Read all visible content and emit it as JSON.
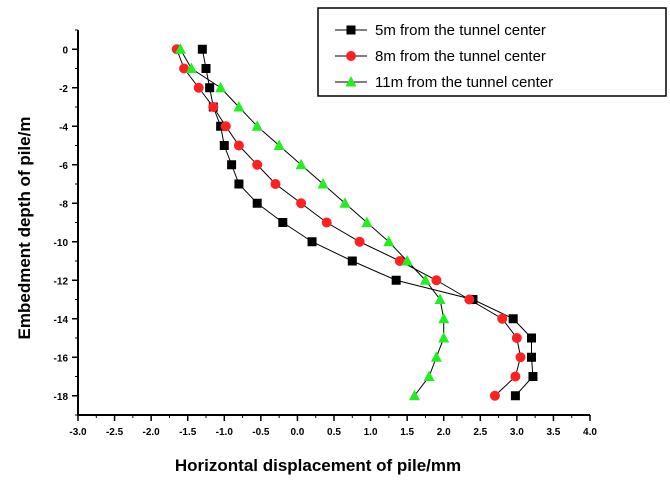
{
  "chart_data": {
    "type": "line",
    "title": "",
    "xlabel": "Horizontal displacement of pile/mm",
    "ylabel": "Embedment depth of pile/m",
    "xlim": [
      -3.0,
      4.0
    ],
    "ylim": [
      -19,
      1
    ],
    "x_ticks": [
      -3.0,
      -2.5,
      -2.0,
      -1.5,
      -1.0,
      -0.5,
      0.0,
      0.5,
      1.0,
      1.5,
      2.0,
      2.5,
      3.0,
      3.5,
      4.0
    ],
    "x_tick_labels": [
      "-3.0",
      "-2.5",
      "-2.0",
      "-1.5",
      "-1.0",
      "-0.5",
      "0.0",
      "0.5",
      "1.0",
      "1.5",
      "2.0",
      "2.5",
      "3.0",
      "3.5",
      "4.0"
    ],
    "y_ticks": [
      0,
      -2,
      -4,
      -6,
      -8,
      -10,
      -12,
      -14,
      -16,
      -18
    ],
    "y_tick_labels": [
      "0",
      "-2",
      "-4",
      "-6",
      "-8",
      "-10",
      "-12",
      "-14",
      "-16",
      "-18"
    ],
    "grid": false,
    "legend_position": "top-right",
    "series": [
      {
        "name": "5m from the tunnel center",
        "marker": "square",
        "color": "#000000",
        "points": [
          [
            -1.3,
            0
          ],
          [
            -1.25,
            -1
          ],
          [
            -1.2,
            -2
          ],
          [
            -1.15,
            -3
          ],
          [
            -1.05,
            -4
          ],
          [
            -1.0,
            -5
          ],
          [
            -0.9,
            -6
          ],
          [
            -0.8,
            -7
          ],
          [
            -0.55,
            -8
          ],
          [
            -0.2,
            -9
          ],
          [
            0.2,
            -10
          ],
          [
            0.75,
            -11
          ],
          [
            1.35,
            -12
          ],
          [
            2.4,
            -13
          ],
          [
            2.95,
            -14
          ],
          [
            3.2,
            -15
          ],
          [
            3.2,
            -16
          ],
          [
            3.22,
            -17
          ],
          [
            2.98,
            -18
          ]
        ]
      },
      {
        "name": "8m from the tunnel center",
        "marker": "circle",
        "color": "#ff2020",
        "points": [
          [
            -1.65,
            0
          ],
          [
            -1.55,
            -1
          ],
          [
            -1.35,
            -2
          ],
          [
            -1.15,
            -3
          ],
          [
            -0.98,
            -4
          ],
          [
            -0.8,
            -5
          ],
          [
            -0.55,
            -6
          ],
          [
            -0.3,
            -7
          ],
          [
            0.05,
            -8
          ],
          [
            0.4,
            -9
          ],
          [
            0.85,
            -10
          ],
          [
            1.4,
            -11
          ],
          [
            1.9,
            -12
          ],
          [
            2.35,
            -13
          ],
          [
            2.8,
            -14
          ],
          [
            3.0,
            -15
          ],
          [
            3.05,
            -16
          ],
          [
            2.98,
            -17
          ],
          [
            2.7,
            -18
          ]
        ]
      },
      {
        "name": "11m from the tunnel center",
        "marker": "triangle",
        "color": "#22ee22",
        "points": [
          [
            -1.6,
            0
          ],
          [
            -1.45,
            -1
          ],
          [
            -1.05,
            -2
          ],
          [
            -0.8,
            -3
          ],
          [
            -0.55,
            -4
          ],
          [
            -0.25,
            -5
          ],
          [
            0.05,
            -6
          ],
          [
            0.35,
            -7
          ],
          [
            0.65,
            -8
          ],
          [
            0.95,
            -9
          ],
          [
            1.25,
            -10
          ],
          [
            1.5,
            -11
          ],
          [
            1.75,
            -12
          ],
          [
            1.95,
            -13
          ],
          [
            2.0,
            -14
          ],
          [
            2.0,
            -15
          ],
          [
            1.9,
            -16
          ],
          [
            1.8,
            -17
          ],
          [
            1.6,
            -18
          ]
        ]
      }
    ]
  }
}
